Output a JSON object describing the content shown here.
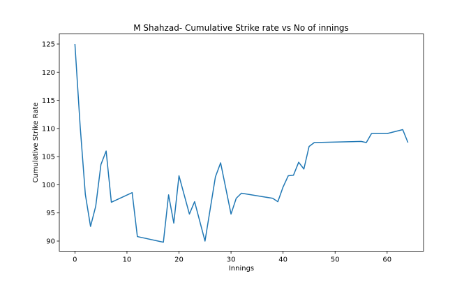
{
  "chart_data": {
    "type": "line",
    "title": "M Shahzad- Cumulative Strike rate vs No of innings",
    "xlabel": "Innings",
    "ylabel": "Cumulative Strike Rate",
    "xlim": [
      -3,
      67
    ],
    "ylim": [
      88.2,
      126.8
    ],
    "xticks": [
      0,
      10,
      20,
      30,
      40,
      50,
      60
    ],
    "yticks": [
      90,
      95,
      100,
      105,
      110,
      115,
      120,
      125
    ],
    "grid": false,
    "series": [
      {
        "color": "#1f77b4",
        "x": [
          0,
          1,
          2,
          3,
          4,
          5,
          6,
          7,
          11,
          12,
          17,
          18,
          19,
          20,
          22,
          23,
          25,
          27,
          28,
          30,
          31,
          32,
          38,
          39,
          40,
          41,
          42,
          43,
          44,
          45,
          46,
          55,
          56,
          57,
          60,
          63,
          64
        ],
        "y": [
          125.0,
          110.5,
          98.3,
          92.6,
          96.2,
          103.6,
          106.0,
          96.9,
          98.6,
          90.8,
          89.8,
          98.2,
          93.2,
          101.6,
          94.8,
          97.0,
          90.0,
          101.4,
          103.9,
          94.8,
          97.6,
          98.5,
          97.6,
          97.0,
          99.6,
          101.6,
          101.7,
          104.0,
          102.8,
          106.8,
          107.5,
          107.7,
          107.5,
          109.1,
          109.1,
          109.8,
          107.5
        ]
      }
    ]
  }
}
